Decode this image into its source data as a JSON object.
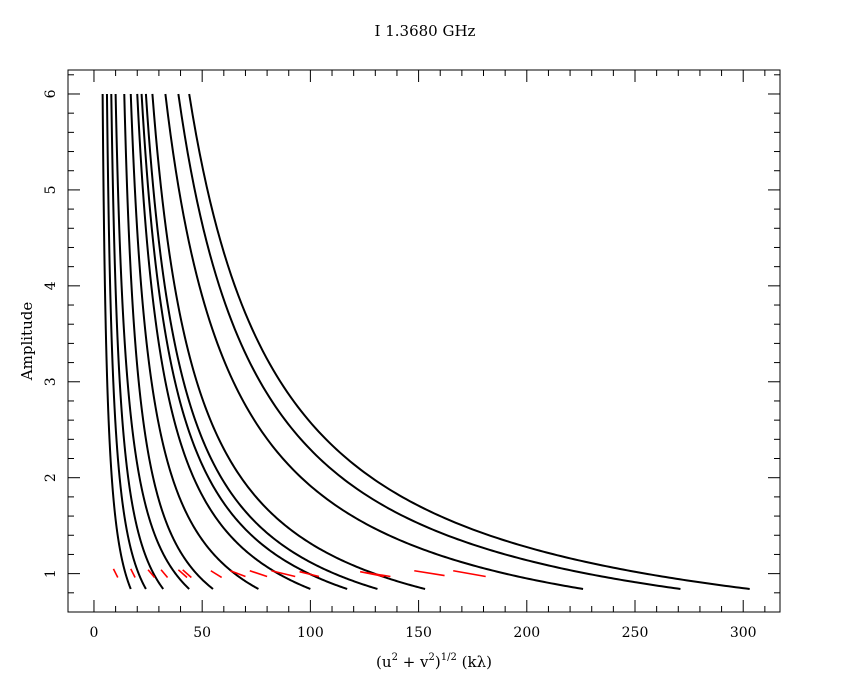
{
  "chart_data": {
    "type": "line",
    "title": "I 1.3680 GHz",
    "xlabel": {
      "prefix": "(u",
      "sup1": "2",
      "mid": " + v",
      "sup2": "2",
      "close": ")",
      "sup3": "1/2",
      "suffix": " (kλ)"
    },
    "ylabel": "Amplitude",
    "xlim": [
      -12,
      317
    ],
    "ylim": [
      0.6,
      6.25
    ],
    "xticks": [
      0,
      50,
      100,
      150,
      200,
      250,
      300
    ],
    "yticks": [
      1,
      2,
      3,
      4,
      5,
      6
    ],
    "grid": false,
    "legend": "none",
    "colors": {
      "model": "#000000",
      "data": "#ff0000"
    },
    "model_curves": {
      "description_units": "amplitude vs uv-distance; each curve spans x from x_at_amp6 to x_end",
      "curves": [
        {
          "x_at_amp6": 4,
          "x_end": 17,
          "y_end": 0.84
        },
        {
          "x_at_amp6": 6,
          "x_end": 24,
          "y_end": 0.84
        },
        {
          "x_at_amp6": 8,
          "x_end": 32,
          "y_end": 0.84
        },
        {
          "x_at_amp6": 10,
          "x_end": 44,
          "y_end": 0.84
        },
        {
          "x_at_amp6": 14,
          "x_end": 55,
          "y_end": 0.84
        },
        {
          "x_at_amp6": 17,
          "x_end": 76,
          "y_end": 0.84
        },
        {
          "x_at_amp6": 20,
          "x_end": 100,
          "y_end": 0.84
        },
        {
          "x_at_amp6": 22,
          "x_end": 117,
          "y_end": 0.84
        },
        {
          "x_at_amp6": 24,
          "x_end": 131,
          "y_end": 0.84
        },
        {
          "x_at_amp6": 27,
          "x_end": 153,
          "y_end": 0.84
        },
        {
          "x_at_amp6": 33,
          "x_end": 226,
          "y_end": 0.84
        },
        {
          "x_at_amp6": 39,
          "x_end": 271,
          "y_end": 0.84
        },
        {
          "x_at_amp6": 44,
          "x_end": 303,
          "y_end": 0.84
        }
      ]
    },
    "data_segments": [
      {
        "x": [
          9,
          11
        ],
        "y": [
          1.05,
          0.96
        ]
      },
      {
        "x": [
          17,
          19
        ],
        "y": [
          1.05,
          0.96
        ]
      },
      {
        "x": [
          25,
          28
        ],
        "y": [
          1.04,
          0.96
        ]
      },
      {
        "x": [
          31,
          34
        ],
        "y": [
          1.04,
          0.96
        ]
      },
      {
        "x": [
          39,
          43
        ],
        "y": [
          1.04,
          0.96
        ]
      },
      {
        "x": [
          41,
          45
        ],
        "y": [
          1.04,
          0.96
        ]
      },
      {
        "x": [
          54,
          59
        ],
        "y": [
          1.03,
          0.96
        ]
      },
      {
        "x": [
          63,
          70
        ],
        "y": [
          1.03,
          0.97
        ]
      },
      {
        "x": [
          72,
          80
        ],
        "y": [
          1.03,
          0.97
        ]
      },
      {
        "x": [
          82,
          93
        ],
        "y": [
          1.03,
          0.97
        ]
      },
      {
        "x": [
          95,
          104
        ],
        "y": [
          1.02,
          0.97
        ]
      },
      {
        "x": [
          123,
          134
        ],
        "y": [
          1.02,
          0.97
        ]
      },
      {
        "x": [
          126,
          137
        ],
        "y": [
          1.01,
          0.97
        ]
      },
      {
        "x": [
          148,
          162
        ],
        "y": [
          1.03,
          0.98
        ]
      },
      {
        "x": [
          166,
          181
        ],
        "y": [
          1.03,
          0.97
        ]
      }
    ]
  }
}
